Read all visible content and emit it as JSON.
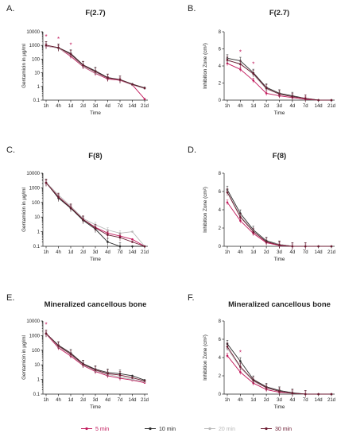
{
  "legend": [
    {
      "label": "5 min",
      "color": "#c2185b",
      "key": "m5"
    },
    {
      "label": "10 min",
      "color": "#2b2b2b",
      "key": "m10"
    },
    {
      "label": "20 min",
      "color": "#b8b8b8",
      "key": "m20"
    },
    {
      "label": "30 min",
      "color": "#6b1a30",
      "key": "m30"
    }
  ],
  "chart_data": [
    {
      "panel": "A.",
      "title": "F(2.7)",
      "type": "line",
      "yscale": "log",
      "ylabel": "Gentamicin in µg/ml",
      "xlabel": "Time",
      "categories": [
        "1h",
        "4h",
        "1d",
        "2d",
        "3d",
        "4d",
        "7d",
        "14d",
        "21d"
      ],
      "yticks": [
        "0.1",
        "1",
        "10",
        "100",
        "1000",
        "10000"
      ],
      "ylim": [
        0.1,
        10000
      ],
      "series": [
        {
          "name": "5 min",
          "values": [
            900,
            650,
            160,
            28,
            9,
            3.5,
            2.8,
            1.3,
            0.12
          ]
        },
        {
          "name": "10 min",
          "values": [
            1000,
            700,
            260,
            38,
            14,
            4.5,
            3.2,
            1.5,
            0.8
          ]
        },
        {
          "name": "20 min",
          "values": [
            950,
            620,
            200,
            30,
            10,
            4.0,
            3.0,
            1.3,
            0.7
          ]
        },
        {
          "name": "30 min",
          "values": [
            1050,
            680,
            230,
            35,
            12,
            4.2,
            3.1,
            1.4,
            0.75
          ]
        }
      ],
      "annotations": [
        {
          "text": "*",
          "x": "1h"
        },
        {
          "text": "*",
          "x": "4h"
        },
        {
          "text": "*",
          "x": "1d"
        }
      ]
    },
    {
      "panel": "B.",
      "title": "F(2.7)",
      "type": "line",
      "yscale": "linear",
      "ylabel": "Inhibition Zone (cm²)",
      "xlabel": "Time",
      "categories": [
        "1h",
        "4h",
        "1d",
        "2d",
        "3d",
        "4d",
        "7d",
        "14d",
        "21d"
      ],
      "yticks": [
        "0",
        "2",
        "4",
        "6",
        "8"
      ],
      "ylim": [
        0,
        8
      ],
      "series": [
        {
          "name": "5 min",
          "values": [
            4.3,
            3.6,
            2.3,
            0.8,
            0.5,
            0.3,
            0.1,
            0,
            0
          ]
        },
        {
          "name": "10 min",
          "values": [
            4.9,
            4.6,
            3.2,
            1.5,
            0.8,
            0.5,
            0.2,
            0,
            0
          ]
        },
        {
          "name": "20 min",
          "values": [
            4.6,
            4.3,
            3.0,
            1.3,
            0.7,
            0.4,
            0.2,
            0,
            0
          ]
        },
        {
          "name": "30 min",
          "values": [
            4.7,
            4.2,
            3.1,
            1.4,
            0.7,
            0.4,
            0.2,
            0,
            0
          ]
        }
      ],
      "annotations": [
        {
          "text": "*",
          "x": "4h"
        },
        {
          "text": "*",
          "x": "1d"
        }
      ]
    },
    {
      "panel": "C.",
      "title": "F(8)",
      "type": "line",
      "yscale": "log",
      "ylabel": "Gentamicin in µg/ml",
      "xlabel": "Time",
      "categories": [
        "1h",
        "4h",
        "1d",
        "2d",
        "3d",
        "4d",
        "7d",
        "14d",
        "21d"
      ],
      "yticks": [
        "0.1",
        "1",
        "10",
        "100",
        "1000",
        "10000"
      ],
      "ylim": [
        0.1,
        10000
      ],
      "series": [
        {
          "name": "5 min",
          "values": [
            2200,
            250,
            45,
            7,
            2.0,
            0.8,
            0.5,
            0.3,
            0.1
          ]
        },
        {
          "name": "10 min",
          "values": [
            2300,
            200,
            40,
            6,
            1.5,
            0.2,
            0.1,
            0.1,
            0.1
          ]
        },
        {
          "name": "20 min",
          "values": [
            2400,
            330,
            55,
            8,
            3.0,
            1.3,
            0.8,
            1.0,
            0.1
          ]
        },
        {
          "name": "30 min",
          "values": [
            2200,
            240,
            45,
            7,
            1.8,
            0.6,
            0.4,
            0.2,
            0.1
          ]
        }
      ],
      "annotations": []
    },
    {
      "panel": "D.",
      "title": "F(8)",
      "type": "line",
      "yscale": "linear",
      "ylabel": "Inhibition Zone (cm²)",
      "xlabel": "Time",
      "categories": [
        "1h",
        "4h",
        "1d",
        "2d",
        "3d",
        "4d",
        "7d",
        "14d",
        "21d"
      ],
      "yticks": [
        "0",
        "2",
        "4",
        "6",
        "8"
      ],
      "ylim": [
        0,
        8
      ],
      "series": [
        {
          "name": "5 min",
          "values": [
            4.8,
            2.8,
            1.4,
            0.4,
            0.1,
            0,
            0,
            0,
            0
          ]
        },
        {
          "name": "10 min",
          "values": [
            6.2,
            3.6,
            1.8,
            0.6,
            0.2,
            0,
            0,
            0,
            0
          ]
        },
        {
          "name": "20 min",
          "values": [
            6.0,
            3.3,
            1.7,
            0.5,
            0.2,
            0,
            0,
            0,
            0
          ]
        },
        {
          "name": "30 min",
          "values": [
            5.9,
            3.2,
            1.6,
            0.5,
            0.15,
            0,
            0,
            0,
            0
          ]
        }
      ],
      "annotations": []
    },
    {
      "panel": "E.",
      "title": "Mineralized cancellous bone",
      "type": "line",
      "yscale": "log",
      "ylabel": "Gentamicin in µg/ml",
      "xlabel": "Time",
      "categories": [
        "1h",
        "4h",
        "1d",
        "2d",
        "3d",
        "4d",
        "7d",
        "14d",
        "21d"
      ],
      "yticks": [
        "0.1",
        "1",
        "10",
        "100",
        "1000",
        "10000"
      ],
      "ylim": [
        0.1,
        10000
      ],
      "series": [
        {
          "name": "5 min",
          "values": [
            1300,
            150,
            40,
            9,
            3.5,
            1.8,
            1.2,
            0.9,
            0.6
          ]
        },
        {
          "name": "10 min",
          "values": [
            1400,
            220,
            65,
            12,
            5,
            3,
            2.5,
            1.8,
            0.9
          ]
        },
        {
          "name": "20 min",
          "values": [
            1350,
            180,
            50,
            10,
            4,
            2.2,
            1.5,
            1.0,
            0.7
          ]
        },
        {
          "name": "30 min",
          "values": [
            1400,
            200,
            55,
            11,
            4.5,
            2.5,
            2.0,
            1.3,
            0.8
          ]
        }
      ],
      "annotations": [
        {
          "text": "*",
          "x": "1h"
        }
      ]
    },
    {
      "panel": "F.",
      "title": "Mineralized cancellous bone",
      "type": "line",
      "yscale": "linear",
      "ylabel": "Inhibition Zone (cm²)",
      "xlabel": "Time",
      "categories": [
        "1h",
        "4h",
        "1d",
        "2d",
        "3d",
        "4d",
        "7d",
        "14d",
        "21d"
      ],
      "yticks": [
        "0",
        "2",
        "4",
        "6",
        "8"
      ],
      "ylim": [
        0,
        8
      ],
      "series": [
        {
          "name": "5 min",
          "values": [
            4.2,
            2.4,
            1.2,
            0.5,
            0.2,
            0.1,
            0,
            0,
            0
          ]
        },
        {
          "name": "10 min",
          "values": [
            5.5,
            3.6,
            1.6,
            0.8,
            0.4,
            0.15,
            0,
            0,
            0
          ]
        },
        {
          "name": "20 min",
          "values": [
            5.0,
            2.9,
            1.4,
            0.7,
            0.3,
            0.1,
            0,
            0,
            0
          ]
        },
        {
          "name": "30 min",
          "values": [
            5.2,
            3.0,
            1.5,
            0.7,
            0.3,
            0.1,
            0,
            0,
            0
          ]
        }
      ],
      "annotations": [
        {
          "text": "*",
          "x": "4h"
        }
      ]
    }
  ]
}
